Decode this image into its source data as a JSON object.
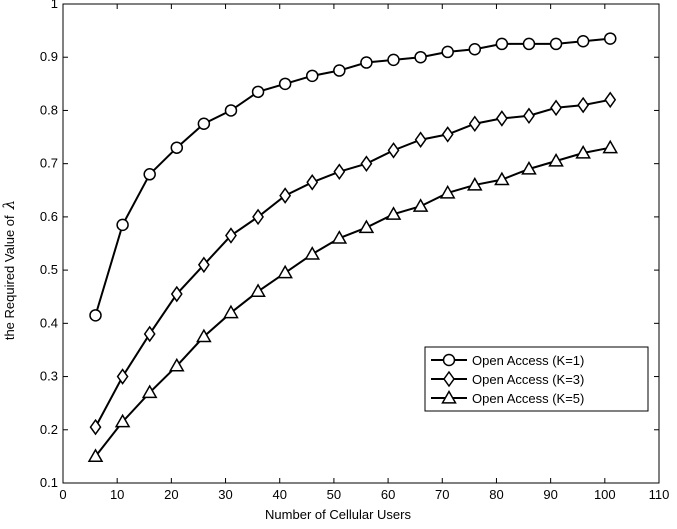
{
  "chart_data": {
    "type": "line",
    "xlabel": "Number of Cellular Users",
    "ylabel": "the Required Value of",
    "ylabel_symbol": "λ",
    "xlim": [
      0,
      110
    ],
    "ylim": [
      0.1,
      1
    ],
    "xticks": [
      "0",
      "10",
      "20",
      "30",
      "40",
      "50",
      "60",
      "70",
      "80",
      "90",
      "100",
      "110"
    ],
    "yticks": [
      "0.1",
      "0.2",
      "0.3",
      "0.4",
      "0.5",
      "0.6",
      "0.7",
      "0.8",
      "0.9",
      "1"
    ],
    "grid": false,
    "legend_position": "bottom-right",
    "x": [
      6,
      11,
      16,
      21,
      26,
      31,
      36,
      41,
      46,
      51,
      56,
      61,
      66,
      71,
      76,
      81,
      86,
      91,
      96,
      101
    ],
    "series": [
      {
        "name": "Open Access (K=1)",
        "marker": "circle",
        "values": [
          0.415,
          0.585,
          0.68,
          0.73,
          0.775,
          0.8,
          0.835,
          0.85,
          0.865,
          0.875,
          0.89,
          0.895,
          0.9,
          0.91,
          0.915,
          0.925,
          0.925,
          0.925,
          0.93,
          0.935
        ]
      },
      {
        "name": "Open Access (K=3)",
        "marker": "diamond",
        "values": [
          0.205,
          0.3,
          0.38,
          0.455,
          0.51,
          0.565,
          0.6,
          0.64,
          0.665,
          0.685,
          0.7,
          0.725,
          0.745,
          0.755,
          0.775,
          0.785,
          0.79,
          0.805,
          0.81,
          0.82
        ]
      },
      {
        "name": "Open Access (K=5)",
        "marker": "triangle",
        "values": [
          0.15,
          0.215,
          0.27,
          0.32,
          0.375,
          0.42,
          0.46,
          0.495,
          0.53,
          0.56,
          0.58,
          0.605,
          0.62,
          0.645,
          0.66,
          0.67,
          0.69,
          0.705,
          0.72,
          0.73
        ]
      }
    ]
  }
}
